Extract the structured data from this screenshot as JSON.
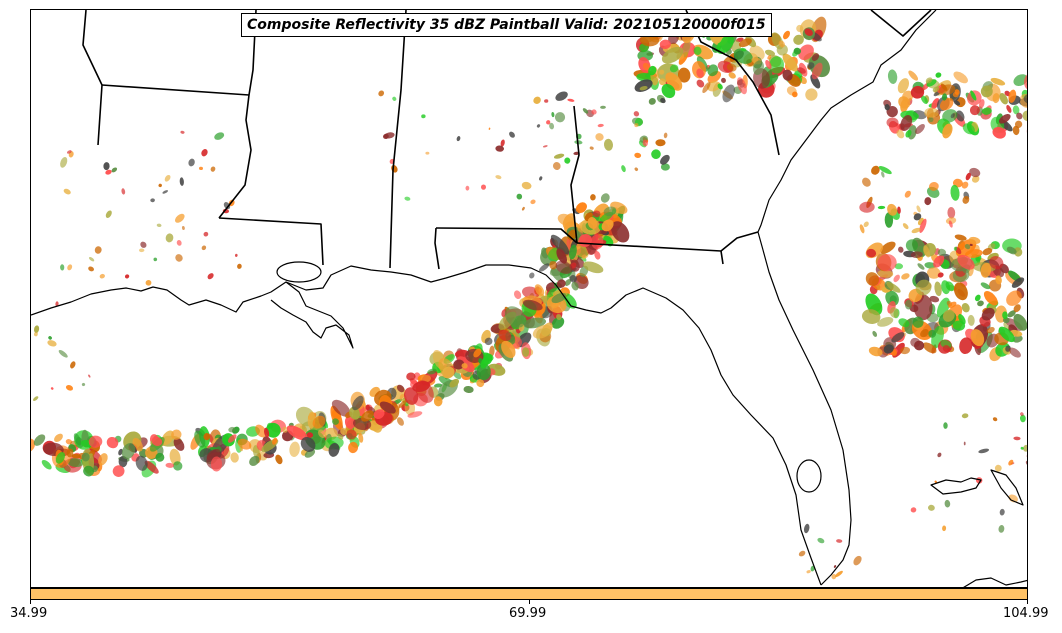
{
  "title": "Composite Reflectivity 35 dBZ Paintball Valid: 202105120000f015",
  "colorbar": {
    "color": "#ffc266",
    "ticks": [
      "34.99",
      "69.99",
      "104.99"
    ]
  },
  "basemap": {
    "features": [
      "state-boundaries",
      "coastlines",
      "lakes"
    ]
  },
  "paintball": {
    "threshold_dbz": 35,
    "member_colors": [
      "#d62728",
      "#ff7f0e",
      "#ff4d4d",
      "#2ca02c",
      "#22cc22",
      "#8c2d2d",
      "#f59f30",
      "#a9a93c",
      "#5a8f44",
      "#444444",
      "#cc6600",
      "#e8b040"
    ]
  }
}
